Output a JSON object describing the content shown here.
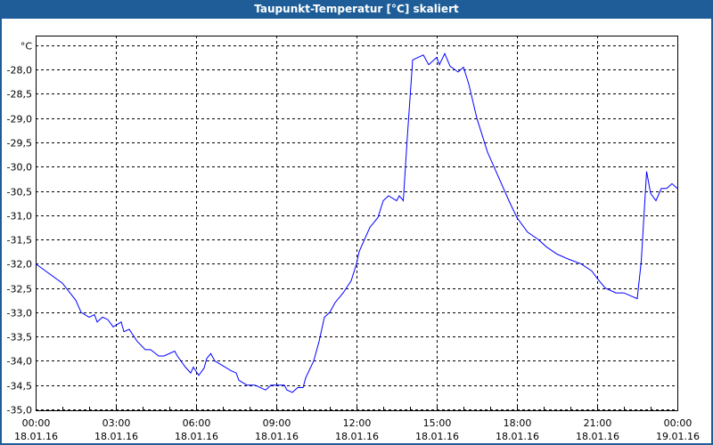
{
  "window": {
    "title": "Taupunkt-Temperatur [°C] skaliert"
  },
  "colors": {
    "titlebar": "#1e5d98",
    "line": "#0000ff",
    "grid": "#000000"
  },
  "chart_data": {
    "type": "line",
    "title": "Taupunkt-Temperatur [°C] skaliert",
    "ylabel": "°C",
    "xlabel": "",
    "ylim": [
      -35.0,
      -27.3
    ],
    "xlim_hours": [
      0,
      24
    ],
    "grid": true,
    "y_ticks": [
      -35.0,
      -34.5,
      -34.0,
      -33.5,
      -33.0,
      -32.5,
      -32.0,
      -31.5,
      -31.0,
      -30.5,
      -30.0,
      -29.5,
      -29.0,
      -28.5,
      -28.0,
      -27.5
    ],
    "y_tick_labels": [
      "-35,0",
      "-34,5",
      "-34,0",
      "-33,5",
      "-33,0",
      "-32,5",
      "-32,0",
      "-31,5",
      "-31,0",
      "-30,5",
      "-30,0",
      "-29,5",
      "-29,0",
      "-28,5",
      "-28,0",
      "°C"
    ],
    "x_ticks_hours": [
      0,
      3,
      6,
      9,
      12,
      15,
      18,
      21,
      24
    ],
    "x_tick_labels": [
      {
        "time": "00:00",
        "date": "18.01.16"
      },
      {
        "time": "03:00",
        "date": "18.01.16"
      },
      {
        "time": "06:00",
        "date": "18.01.16"
      },
      {
        "time": "09:00",
        "date": "18.01.16"
      },
      {
        "time": "12:00",
        "date": "18.01.16"
      },
      {
        "time": "15:00",
        "date": "18.01.16"
      },
      {
        "time": "18:00",
        "date": "18.01.16"
      },
      {
        "time": "21:00",
        "date": "18.01.16"
      },
      {
        "time": "00:00",
        "date": "19.01.16"
      }
    ],
    "series": [
      {
        "name": "Taupunkt-Temperatur",
        "x_hours": [
          0,
          1.0,
          1.5,
          1.7,
          2.0,
          2.2,
          2.3,
          2.5,
          2.7,
          2.9,
          3.2,
          3.3,
          3.5,
          3.8,
          4.1,
          4.3,
          4.6,
          4.8,
          5.2,
          5.3,
          5.6,
          5.8,
          5.9,
          6.1,
          6.3,
          6.4,
          6.55,
          6.7,
          7.0,
          7.3,
          7.5,
          7.6,
          7.9,
          8.2,
          8.6,
          8.8,
          9.3,
          9.4,
          9.6,
          9.8,
          10.0,
          10.1,
          10.4,
          10.6,
          10.8,
          11.0,
          11.2,
          11.5,
          11.8,
          12.0,
          12.1,
          12.3,
          12.5,
          12.8,
          13.0,
          13.2,
          13.5,
          13.6,
          13.75,
          13.9,
          14.1,
          14.5,
          14.7,
          15.0,
          15.1,
          15.3,
          15.5,
          15.8,
          16.0,
          16.2,
          16.5,
          16.9,
          17.3,
          17.7,
          18.0,
          18.4,
          18.8,
          19.1,
          19.5,
          19.9,
          20.4,
          20.8,
          21.0,
          21.3,
          21.7,
          22.0,
          22.5,
          22.65,
          22.85,
          23.0,
          23.2,
          23.4,
          23.6,
          23.8,
          24.0
        ],
        "values": [
          -32.0,
          -32.4,
          -32.75,
          -33.0,
          -33.1,
          -33.05,
          -33.2,
          -33.1,
          -33.15,
          -33.3,
          -33.2,
          -33.4,
          -33.35,
          -33.6,
          -33.77,
          -33.77,
          -33.9,
          -33.9,
          -33.8,
          -33.9,
          -34.13,
          -34.25,
          -34.13,
          -34.3,
          -34.15,
          -33.95,
          -33.85,
          -34.0,
          -34.1,
          -34.2,
          -34.25,
          -34.4,
          -34.5,
          -34.5,
          -34.6,
          -34.5,
          -34.5,
          -34.6,
          -34.65,
          -34.55,
          -34.55,
          -34.35,
          -34.0,
          -33.6,
          -33.1,
          -33.0,
          -32.8,
          -32.6,
          -32.35,
          -32.0,
          -31.75,
          -31.5,
          -31.25,
          -31.05,
          -30.7,
          -30.6,
          -30.7,
          -30.6,
          -30.7,
          -29.4,
          -27.8,
          -27.7,
          -27.9,
          -27.75,
          -27.9,
          -27.67,
          -27.93,
          -28.05,
          -27.95,
          -28.3,
          -29.0,
          -29.7,
          -30.2,
          -30.7,
          -31.05,
          -31.35,
          -31.5,
          -31.65,
          -31.8,
          -31.9,
          -32.0,
          -32.15,
          -32.3,
          -32.5,
          -32.6,
          -32.6,
          -32.72,
          -31.95,
          -30.1,
          -30.55,
          -30.7,
          -30.45,
          -30.45,
          -30.35,
          -30.45
        ]
      }
    ]
  }
}
